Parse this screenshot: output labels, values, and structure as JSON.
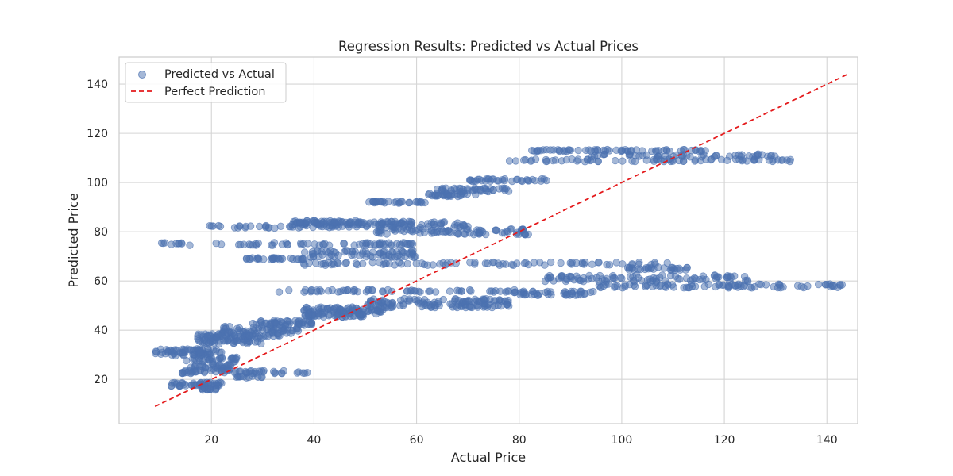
{
  "chart_data": {
    "type": "scatter",
    "title": "Regression Results: Predicted vs Actual Prices",
    "xlabel": "Actual Price",
    "ylabel": "Predicted Price",
    "xlim": [
      2,
      146
    ],
    "ylim": [
      2,
      151
    ],
    "xticks": [
      20,
      40,
      60,
      80,
      100,
      120,
      140
    ],
    "yticks": [
      20,
      40,
      60,
      80,
      100,
      120,
      140
    ],
    "grid": true,
    "legend_position": "top-left",
    "series": [
      {
        "name": "Predicted vs Actual",
        "kind": "scatter",
        "color": "#4c72b0",
        "alpha": 0.5,
        "clusters": [
          {
            "y": 31,
            "x_start": 9,
            "x_end": 22,
            "count": 70,
            "jitter": 1.4
          },
          {
            "y": 36,
            "x_start": 17,
            "x_end": 30,
            "count": 70,
            "jitter": 1.6
          },
          {
            "y": 40,
            "x_start": 22,
            "x_end": 37,
            "count": 60,
            "jitter": 1.5
          },
          {
            "y": 43,
            "x_start": 28,
            "x_end": 40,
            "count": 50,
            "jitter": 1.0
          },
          {
            "y": 38,
            "x_start": 16,
            "x_end": 35,
            "count": 35,
            "jitter": 0.6
          },
          {
            "y": 28,
            "x_start": 15,
            "x_end": 25,
            "count": 30,
            "jitter": 1.0
          },
          {
            "y": 25,
            "x_start": 16,
            "x_end": 24,
            "count": 40,
            "jitter": 1.5
          },
          {
            "y": 23,
            "x_start": 14,
            "x_end": 41,
            "count": 50,
            "jitter": 0.6
          },
          {
            "y": 21,
            "x_start": 24,
            "x_end": 30,
            "count": 12,
            "jitter": 0.4
          },
          {
            "y": 18,
            "x_start": 12,
            "x_end": 22,
            "count": 45,
            "jitter": 0.8
          },
          {
            "y": 16,
            "x_start": 18,
            "x_end": 21,
            "count": 14,
            "jitter": 0.4
          },
          {
            "y": 48,
            "x_start": 38,
            "x_end": 54,
            "count": 80,
            "jitter": 1.5
          },
          {
            "y": 46,
            "x_start": 38,
            "x_end": 50,
            "count": 40,
            "jitter": 0.6
          },
          {
            "y": 51,
            "x_start": 50,
            "x_end": 78,
            "count": 130,
            "jitter": 1.8
          },
          {
            "y": 56,
            "x_start": 33,
            "x_end": 80,
            "count": 60,
            "jitter": 0.5
          },
          {
            "y": 55,
            "x_start": 78,
            "x_end": 95,
            "count": 45,
            "jitter": 0.8
          },
          {
            "y": 58,
            "x_start": 95,
            "x_end": 144,
            "count": 85,
            "jitter": 0.8
          },
          {
            "y": 61,
            "x_start": 85,
            "x_end": 125,
            "count": 90,
            "jitter": 1.5
          },
          {
            "y": 65,
            "x_start": 100,
            "x_end": 113,
            "count": 30,
            "jitter": 0.6
          },
          {
            "y": 67,
            "x_start": 38,
            "x_end": 110,
            "count": 85,
            "jitter": 0.6
          },
          {
            "y": 71,
            "x_start": 38,
            "x_end": 60,
            "count": 70,
            "jitter": 1.4
          },
          {
            "y": 69,
            "x_start": 26,
            "x_end": 38,
            "count": 30,
            "jitter": 0.4
          },
          {
            "y": 75,
            "x_start": 9,
            "x_end": 60,
            "count": 70,
            "jitter": 0.6
          },
          {
            "y": 80,
            "x_start": 52,
            "x_end": 82,
            "count": 80,
            "jitter": 1.2
          },
          {
            "y": 83,
            "x_start": 35,
            "x_end": 70,
            "count": 120,
            "jitter": 1.2
          },
          {
            "y": 82,
            "x_start": 19,
            "x_end": 45,
            "count": 30,
            "jitter": 0.5
          },
          {
            "y": 84,
            "x_start": 36,
            "x_end": 50,
            "count": 35,
            "jitter": 0.5
          },
          {
            "y": 92,
            "x_start": 50,
            "x_end": 62,
            "count": 30,
            "jitter": 0.4
          },
          {
            "y": 95,
            "x_start": 62,
            "x_end": 72,
            "count": 30,
            "jitter": 0.6
          },
          {
            "y": 97,
            "x_start": 64,
            "x_end": 78,
            "count": 40,
            "jitter": 0.8
          },
          {
            "y": 101,
            "x_start": 69,
            "x_end": 86,
            "count": 35,
            "jitter": 0.5
          },
          {
            "y": 109,
            "x_start": 78,
            "x_end": 133,
            "count": 70,
            "jitter": 0.5
          },
          {
            "y": 111,
            "x_start": 92,
            "x_end": 130,
            "count": 45,
            "jitter": 0.6
          },
          {
            "y": 113,
            "x_start": 82,
            "x_end": 118,
            "count": 60,
            "jitter": 0.4
          }
        ]
      },
      {
        "name": "Perfect Prediction",
        "kind": "line",
        "color": "#e41a1c",
        "dash": "6,4",
        "x": [
          9,
          144
        ],
        "y": [
          9,
          144
        ]
      }
    ]
  }
}
